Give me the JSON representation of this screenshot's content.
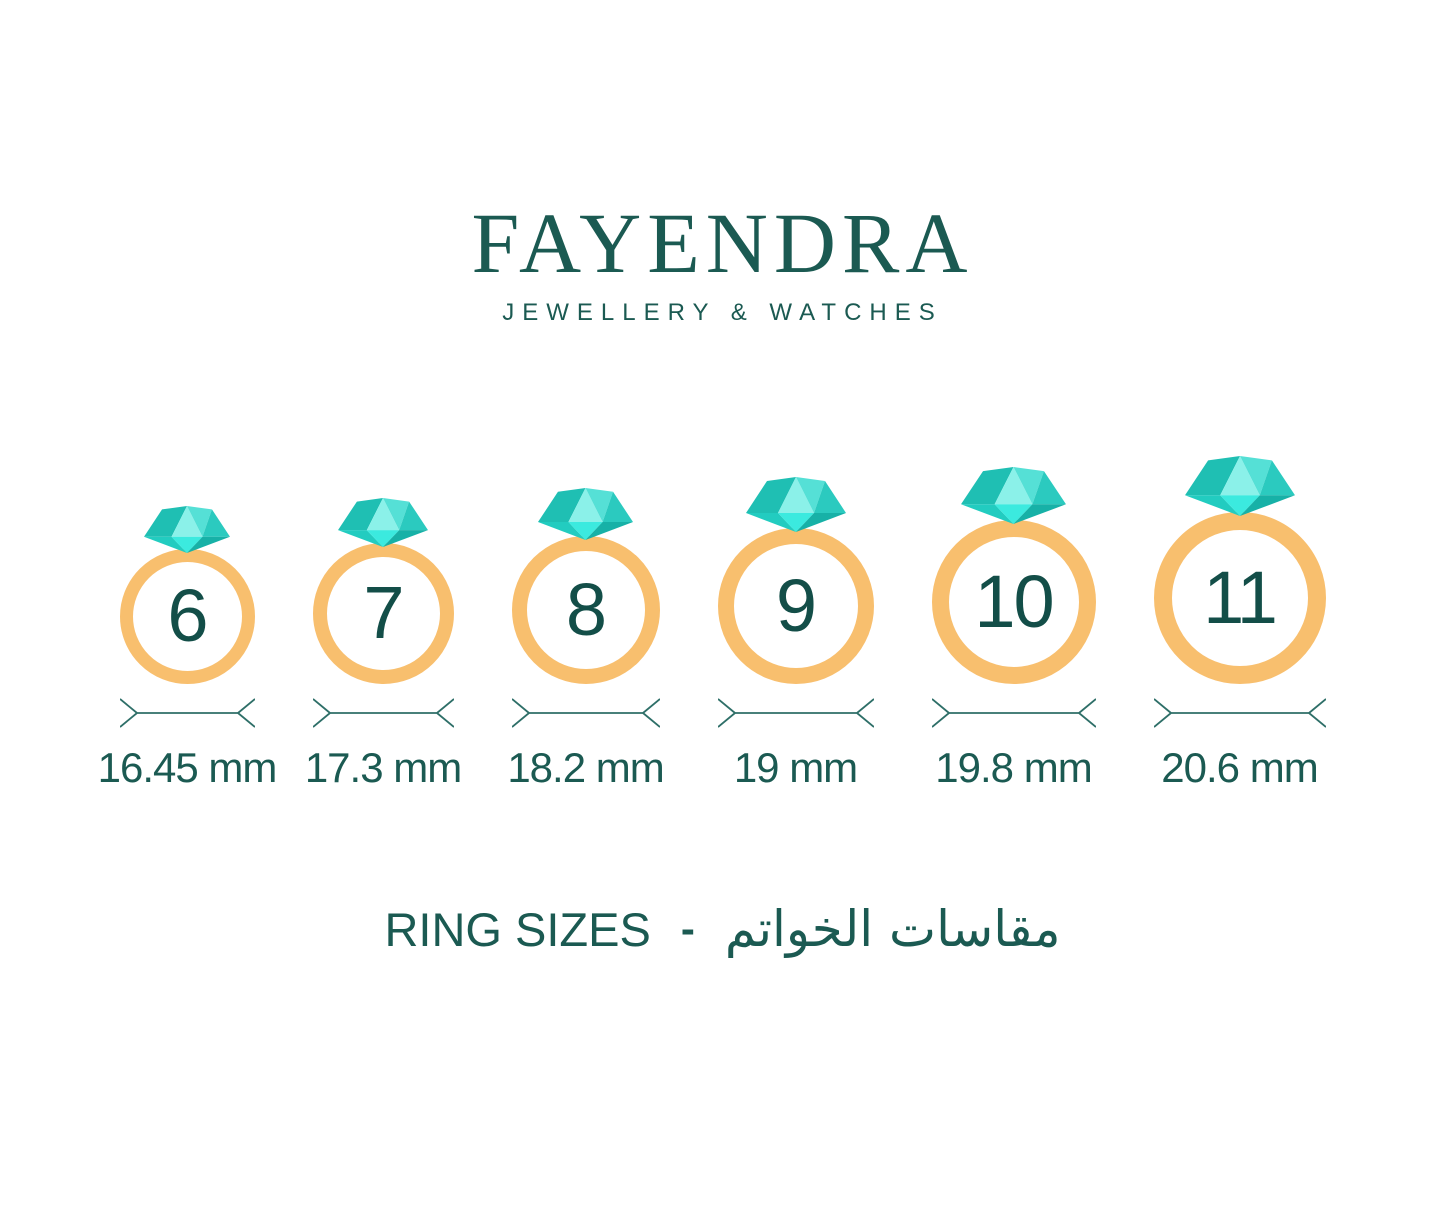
{
  "brand": {
    "name": "FAYENDRA",
    "tagline": "JEWELLERY & WATCHES"
  },
  "rings": [
    {
      "size": "6",
      "diameter": "16.45 mm"
    },
    {
      "size": "7",
      "diameter": "17.3 mm"
    },
    {
      "size": "8",
      "diameter": "18.2 mm"
    },
    {
      "size": "9",
      "diameter": "19 mm"
    },
    {
      "size": "10",
      "diameter": "19.8 mm"
    },
    {
      "size": "11",
      "diameter": "20.6 mm"
    }
  ],
  "footer": {
    "title_en": "RING SIZES",
    "separator": "-",
    "title_ar": "مقاسات الخواتم"
  },
  "colors": {
    "text": "#1B5A52",
    "number": "#134E48",
    "band": "#F8BF6E",
    "measure_line": "#2E6F68",
    "diamond": {
      "crown_left": "#1FBFB3",
      "crown_center": "#8BF1E9",
      "crown_right_mid": "#55E0D6",
      "crown_right_far": "#2BCABF",
      "pavilion_left": "#22CCC0",
      "pavilion_center": "#3BEADF",
      "pavilion_right": "#17B1A7"
    }
  }
}
